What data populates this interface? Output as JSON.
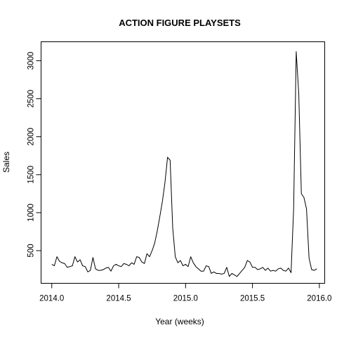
{
  "chart_data": {
    "type": "line",
    "title": "ACTION FIGURE PLAYSETS",
    "xlabel": "Year (weeks)",
    "ylabel": "Sales",
    "xlim": [
      2013.92,
      2016.04
    ],
    "ylim": [
      70,
      3250
    ],
    "x_ticks": [
      "2014.0",
      "2014.5",
      "2015.0",
      "2015.5",
      "2016.0"
    ],
    "x_tick_values": [
      2014.0,
      2014.5,
      2015.0,
      2015.5,
      2016.0
    ],
    "y_ticks": [
      "500",
      "1000",
      "1500",
      "2000",
      "2500",
      "3000"
    ],
    "y_tick_values": [
      500,
      1000,
      1500,
      2000,
      2500,
      3000
    ],
    "grid": false,
    "series": [
      {
        "color": "#000000",
        "x_start": 2014.0,
        "x_step": 0.019231,
        "values": [
          320,
          300,
          420,
          360,
          340,
          330,
          280,
          290,
          300,
          420,
          350,
          380,
          300,
          290,
          220,
          240,
          410,
          260,
          240,
          240,
          250,
          270,
          280,
          230,
          300,
          320,
          300,
          290,
          330,
          320,
          300,
          340,
          320,
          420,
          410,
          350,
          330,
          460,
          420,
          500,
          600,
          760,
          950,
          1150,
          1400,
          1730,
          1690,
          800,
          420,
          340,
          370,
          300,
          320,
          290,
          420,
          340,
          290,
          260,
          230,
          230,
          300,
          290,
          200,
          220,
          200,
          200,
          190,
          200,
          280,
          160,
          200,
          180,
          160,
          200,
          240,
          280,
          370,
          350,
          280,
          280,
          250,
          260,
          280,
          240,
          270,
          230,
          240,
          230,
          260,
          270,
          240,
          230,
          270,
          210,
          1050,
          3120,
          2560,
          1250,
          1200,
          1050,
          400,
          250,
          240,
          260
        ]
      }
    ]
  }
}
